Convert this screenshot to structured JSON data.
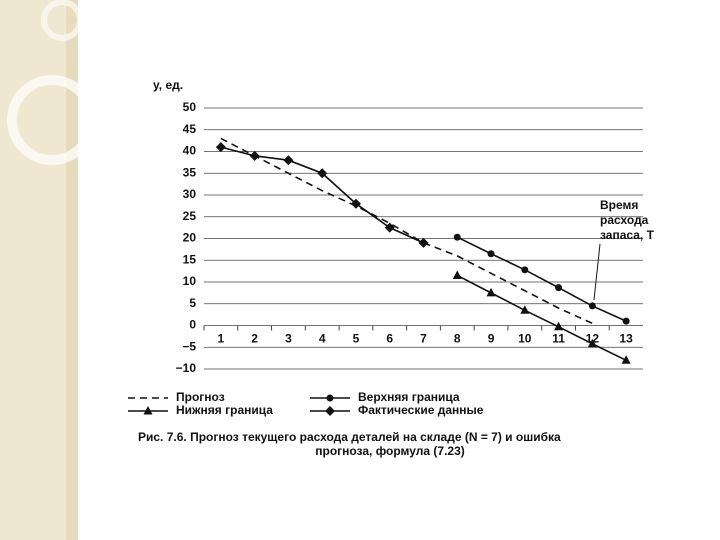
{
  "chart_data": {
    "type": "line",
    "y_label": "y, ед.",
    "categories": [
      "1",
      "2",
      "3",
      "4",
      "5",
      "6",
      "7",
      "8",
      "9",
      "10",
      "11",
      "12",
      "13"
    ],
    "ylim": [
      -10,
      50
    ],
    "yticks": [
      {
        "value": -10,
        "label": "−10"
      },
      {
        "value": -5,
        "label": "−5"
      },
      0,
      5,
      10,
      15,
      20,
      25,
      30,
      35,
      40,
      45,
      50
    ],
    "grid": true,
    "series": [
      {
        "name": "Прогноз",
        "color": "#111111",
        "style": "dashed",
        "marker": "none",
        "values": [
          43,
          39,
          35,
          31,
          27.5,
          23.5,
          19,
          16,
          12,
          8,
          4,
          0.5,
          null
        ]
      },
      {
        "name": "Верхняя граница",
        "color": "#111111",
        "style": "solid",
        "marker": "circle",
        "values": [
          null,
          null,
          null,
          null,
          null,
          null,
          null,
          20.3,
          16.5,
          12.8,
          8.7,
          4.5,
          1
        ]
      },
      {
        "name": "Нижняя граница",
        "color": "#111111",
        "style": "solid",
        "marker": "triangle",
        "values": [
          null,
          null,
          null,
          null,
          null,
          null,
          null,
          11.5,
          7.5,
          3.5,
          -0.3,
          -4.2,
          -8
        ]
      },
      {
        "name": "Фактические данные",
        "color": "#111111",
        "style": "solid",
        "marker": "diamond",
        "values": [
          41,
          39,
          38,
          35,
          28,
          22.5,
          19,
          null,
          null,
          null,
          null,
          null,
          null
        ]
      }
    ],
    "annotation": [
      "Время",
      "расхода",
      "запаса, T"
    ],
    "caption": [
      "Рис. 7.6. Прогноз текущего расхода деталей на складе (N = 7) и ошибка",
      "прогноза, формула (7.23)"
    ]
  }
}
